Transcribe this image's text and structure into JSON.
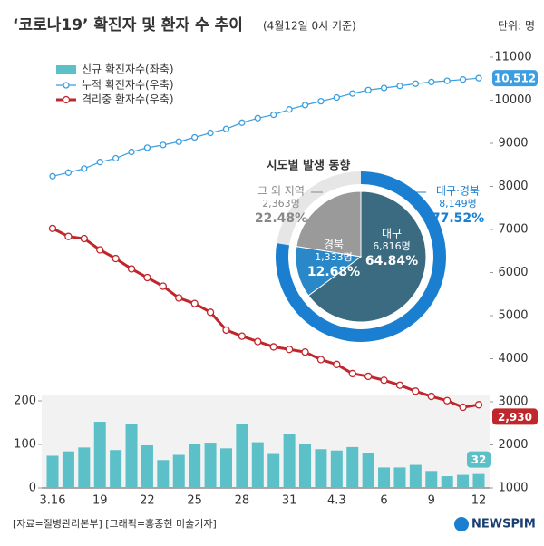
{
  "chart_data": [
    {
      "type": "combo",
      "title": "‘코로나19’ 확진자 및 환자 수 추이",
      "subtitle": "(4월12일 0시 기준)",
      "unit_label": "단위: 명",
      "source": "[자료=질병관리본부] [그래픽=홍종현 미술기자]",
      "brand": "NEWSPIM",
      "legend": "top-left",
      "categories": [
        "3.16",
        null,
        null,
        "19",
        null,
        null,
        "22",
        null,
        null,
        "25",
        null,
        null,
        "28",
        null,
        null,
        "31",
        null,
        null,
        "4.3",
        null,
        null,
        "6",
        null,
        null,
        "9",
        null,
        null,
        "12"
      ],
      "ylim": [
        0,
        200
      ],
      "yticks": [
        0,
        100,
        200
      ],
      "y2lim": [
        1000,
        11000
      ],
      "y2ticks": [
        1000,
        2000,
        3000,
        4000,
        5000,
        6000,
        7000,
        8000,
        9000,
        10000,
        11000
      ],
      "series": [
        {
          "name": "신규 확진자수(좌축)",
          "color": "#5bc0c8",
          "type": "bar",
          "values": [
            74,
            84,
            93,
            152,
            87,
            147,
            98,
            64,
            76,
            100,
            104,
            91,
            146,
            105,
            78,
            125,
            101,
            89,
            86,
            94,
            81,
            47,
            47,
            53,
            39,
            27,
            30,
            32
          ]
        },
        {
          "name": "누적 확진자수(우축)",
          "color": "#3b9ee0",
          "type": "line",
          "axis": "y2",
          "values": [
            8236,
            8320,
            8413,
            8565,
            8652,
            8799,
            8897,
            8961,
            9037,
            9137,
            9241,
            9332,
            9478,
            9583,
            9661,
            9786,
            9887,
            9976,
            10062,
            10156,
            10237,
            10284,
            10331,
            10384,
            10423,
            10450,
            10480,
            10512
          ],
          "value_labels": [
            null,
            null,
            null,
            null,
            null,
            null,
            null,
            null,
            null,
            null,
            null,
            null,
            null,
            null,
            null,
            null,
            null,
            null,
            null,
            null,
            null,
            null,
            null,
            null,
            null,
            null,
            null,
            "10,512"
          ]
        },
        {
          "name": "격리중 환자수(우축)",
          "color": "#c0272d",
          "type": "line",
          "axis": "y2",
          "values": [
            7024,
            6838,
            6789,
            6527,
            6325,
            6085,
            5884,
            5684,
            5410,
            5281,
            5078,
            4665,
            4523,
            4398,
            4275,
            4216,
            4155,
            3979,
            3867,
            3654,
            3591,
            3500,
            3385,
            3246,
            3125,
            3026,
            2873,
            2930
          ],
          "value_labels": [
            null,
            null,
            null,
            null,
            null,
            null,
            null,
            null,
            null,
            null,
            null,
            null,
            null,
            null,
            null,
            null,
            null,
            null,
            null,
            null,
            null,
            null,
            null,
            null,
            null,
            null,
            null,
            "2,930"
          ]
        }
      ]
    },
    {
      "type": "pie",
      "title": "시도별 발생 동향",
      "slices": [
        {
          "name": "대구",
          "value": 6816,
          "value_label": "6,816명",
          "percent_label": "64.84%",
          "color": "#3b6b80"
        },
        {
          "name": "경북",
          "value": 1333,
          "value_label": "1,333명",
          "percent_label": "12.68%",
          "color": "#2a88c8"
        },
        {
          "name": "그 외 지역",
          "value": 2363,
          "value_label": "2,363명",
          "percent_label": "22.48%",
          "color": "#9a9a9a"
        }
      ],
      "ring": {
        "name": "대구·경북",
        "value": 8149,
        "value_label": "8,149명",
        "percent_label": "77.52%",
        "color": "#1a7fd0",
        "rest_color": "#e6e6e6"
      }
    }
  ]
}
